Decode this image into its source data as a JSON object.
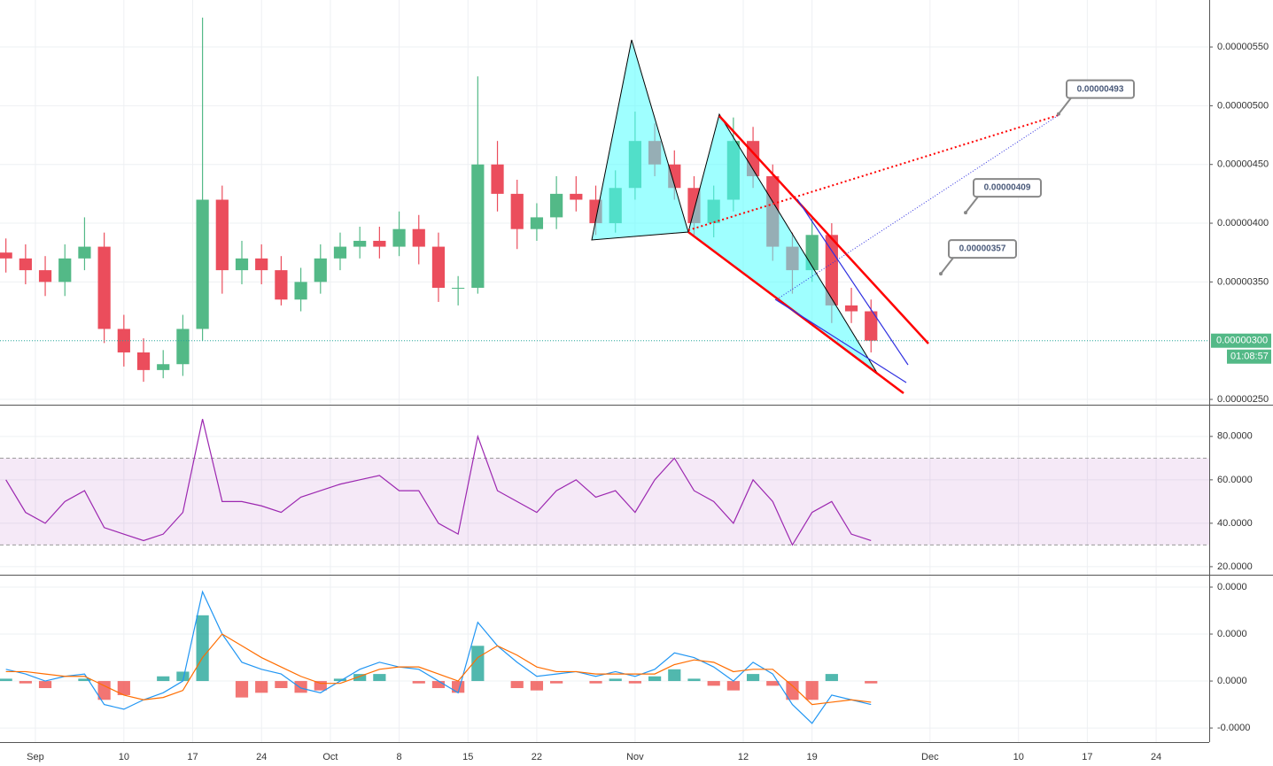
{
  "chart_data": [
    {
      "type": "candlestick",
      "x": [
        -3,
        -1,
        1,
        3,
        5,
        7,
        9,
        11,
        13,
        15,
        17,
        19,
        21,
        23,
        25,
        27,
        29,
        31,
        33,
        35,
        37,
        39,
        41,
        43,
        45,
        47,
        49,
        51,
        53,
        55,
        57,
        59,
        61,
        63,
        65,
        67,
        69,
        71,
        73,
        75,
        77,
        79,
        81,
        83,
        85
      ],
      "open": [
        3.75e-06,
        3.7e-06,
        3.6e-06,
        3.5e-06,
        3.7e-06,
        3.8e-06,
        3.1e-06,
        2.9e-06,
        2.75e-06,
        2.8e-06,
        3.1e-06,
        4.2e-06,
        3.6e-06,
        3.7e-06,
        3.6e-06,
        3.35e-06,
        3.5e-06,
        3.7e-06,
        3.8e-06,
        3.85e-06,
        3.8e-06,
        3.95e-06,
        3.8e-06,
        3.45e-06,
        3.45e-06,
        4.5e-06,
        4.25e-06,
        3.95e-06,
        4.05e-06,
        4.25e-06,
        4.2e-06,
        4e-06,
        4.3e-06,
        4.7e-06,
        4.5e-06,
        4.3e-06,
        4e-06,
        4.2e-06,
        4.7e-06,
        4.4e-06,
        3.8e-06,
        3.6e-06,
        3.9e-06,
        3.3e-06,
        3.25e-06
      ],
      "high": [
        3.87e-06,
        3.82e-06,
        3.72e-06,
        3.82e-06,
        4.05e-06,
        3.92e-06,
        3.22e-06,
        3.02e-06,
        2.92e-06,
        3.22e-06,
        5.75e-06,
        4.32e-06,
        3.85e-06,
        3.82e-06,
        3.72e-06,
        3.62e-06,
        3.82e-06,
        3.92e-06,
        3.97e-06,
        3.97e-06,
        4.1e-06,
        4.07e-06,
        3.92e-06,
        3.55e-06,
        5.25e-06,
        4.7e-06,
        4.37e-06,
        4.17e-06,
        4.4e-06,
        4.4e-06,
        4.32e-06,
        4.45e-06,
        4.95e-06,
        4.85e-06,
        4.62e-06,
        4.4e-06,
        4.32e-06,
        4.9e-06,
        4.82e-06,
        4.5e-06,
        3.92e-06,
        4.05e-06,
        4e-06,
        3.45e-06,
        3.35e-06
      ],
      "low": [
        3.58e-06,
        3.48e-06,
        3.38e-06,
        3.38e-06,
        3.6e-06,
        2.98e-06,
        2.78e-06,
        2.65e-06,
        2.68e-06,
        2.7e-06,
        3e-06,
        3.4e-06,
        3.48e-06,
        3.48e-06,
        3.3e-06,
        3.25e-06,
        3.4e-06,
        3.6e-06,
        3.7e-06,
        3.7e-06,
        3.72e-06,
        3.65e-06,
        3.33e-06,
        3.3e-06,
        3.4e-06,
        4.1e-06,
        3.78e-06,
        3.85e-06,
        3.95e-06,
        4.1e-06,
        3.9e-06,
        3.92e-06,
        4.2e-06,
        4.4e-06,
        4.2e-06,
        3.9e-06,
        3.88e-06,
        4.1e-06,
        4.3e-06,
        3.68e-06,
        3.4e-06,
        3.5e-06,
        3.15e-06,
        3.15e-06,
        2.9e-06
      ],
      "close": [
        3.7e-06,
        3.6e-06,
        3.5e-06,
        3.7e-06,
        3.8e-06,
        3.1e-06,
        2.9e-06,
        2.75e-06,
        2.8e-06,
        3.1e-06,
        4.2e-06,
        3.6e-06,
        3.7e-06,
        3.6e-06,
        3.35e-06,
        3.5e-06,
        3.7e-06,
        3.8e-06,
        3.85e-06,
        3.8e-06,
        3.95e-06,
        3.8e-06,
        3.45e-06,
        3.45e-06,
        4.5e-06,
        4.25e-06,
        3.95e-06,
        4.05e-06,
        4.25e-06,
        4.2e-06,
        4e-06,
        4.3e-06,
        4.7e-06,
        4.5e-06,
        4.3e-06,
        4e-06,
        4.2e-06,
        4.7e-06,
        4.4e-06,
        3.8e-06,
        3.6e-06,
        3.9e-06,
        3.3e-06,
        3.25e-06,
        3e-06
      ],
      "up_color": "#53b987",
      "down_color": "#eb4d5c",
      "xlim": [
        -3.6,
        119.4
      ],
      "xticks": [
        {
          "value": 0,
          "label": "Sep"
        },
        {
          "value": 9,
          "label": "10"
        },
        {
          "value": 16,
          "label": "17"
        },
        {
          "value": 23,
          "label": "24"
        },
        {
          "value": 30,
          "label": "Oct"
        },
        {
          "value": 37,
          "label": "8"
        },
        {
          "value": 44,
          "label": "15"
        },
        {
          "value": 51,
          "label": "22"
        },
        {
          "value": 61,
          "label": "Nov"
        },
        {
          "value": 72,
          "label": "12"
        },
        {
          "value": 79,
          "label": "19"
        },
        {
          "value": 91,
          "label": "Dec"
        },
        {
          "value": 100,
          "label": "10"
        },
        {
          "value": 107,
          "label": "17"
        },
        {
          "value": 114,
          "label": "24"
        }
      ],
      "ylim": [
        2.455e-06,
        5.9e-06
      ],
      "yticks": [
        {
          "value": 5.5e-06,
          "label": "0.00000550"
        },
        {
          "value": 5e-06,
          "label": "0.00000500"
        },
        {
          "value": 4.5e-06,
          "label": "0.00000450"
        },
        {
          "value": 4e-06,
          "label": "0.00000400"
        },
        {
          "value": 3.5e-06,
          "label": "0.00000350"
        },
        {
          "value": 2.5e-06,
          "label": "0.00000250"
        }
      ],
      "grid": true,
      "last_price": {
        "value": 3e-06,
        "label": "0.00000300"
      },
      "countdown": "01:08:57",
      "annotations": [
        {
          "value": 4.93e-06,
          "label": "0.00000493"
        },
        {
          "value": 4.09e-06,
          "label": "0.00000409"
        },
        {
          "value": 3.57e-06,
          "label": "0.00000357"
        }
      ]
    },
    {
      "type": "line",
      "values": [
        60,
        45,
        40,
        50,
        55,
        38,
        35,
        32,
        35,
        45,
        88,
        50,
        50,
        48,
        45,
        52,
        55,
        58,
        60,
        62,
        55,
        55,
        40,
        35,
        80,
        55,
        50,
        45,
        55,
        60,
        52,
        55,
        45,
        60,
        70,
        55,
        50,
        40,
        60,
        50,
        30,
        45,
        50,
        35,
        32
      ],
      "color": "#9c27b0",
      "band": [
        30,
        70
      ],
      "ylim": [
        16.7,
        94.2
      ],
      "yticks": [
        {
          "value": 80,
          "label": "80.0000"
        },
        {
          "value": 60,
          "label": "60.0000"
        },
        {
          "value": 40,
          "label": "40.0000"
        },
        {
          "value": 20,
          "label": "20.0000"
        }
      ]
    },
    {
      "type": "macd",
      "series": [
        {
          "color": "#2196f3",
          "values": [
            5e-09,
            3e-09,
            0,
            2e-09,
            3e-09,
            -1e-08,
            -1.2e-08,
            -8e-09,
            -5e-09,
            0,
            3.8e-08,
            2e-08,
            8e-09,
            5e-09,
            3e-09,
            -3e-09,
            -5e-09,
            0,
            5e-09,
            8e-09,
            6e-09,
            5e-09,
            0,
            -5e-09,
            2.5e-08,
            1.5e-08,
            8e-09,
            2e-09,
            3e-09,
            4e-09,
            2e-09,
            4e-09,
            2e-09,
            5e-09,
            1.2e-08,
            1e-08,
            6e-09,
            0,
            8e-09,
            3e-09,
            -1e-08,
            -1.8e-08,
            -6e-09,
            -8e-09,
            -1e-08
          ]
        },
        {
          "color": "#ff6d00",
          "values": [
            4e-09,
            4e-09,
            3e-09,
            2e-09,
            2e-09,
            -2e-09,
            -6e-09,
            -8e-09,
            -7e-09,
            -4e-09,
            1e-08,
            2e-08,
            1.5e-08,
            1e-08,
            6e-09,
            2e-09,
            -1e-09,
            -1e-09,
            2e-09,
            5e-09,
            6e-09,
            6e-09,
            3e-09,
            0,
            1e-08,
            1.5e-08,
            1.1e-08,
            6e-09,
            4e-09,
            4e-09,
            3e-09,
            3e-09,
            3e-09,
            3e-09,
            7e-09,
            9e-09,
            8e-09,
            4e-09,
            5e-09,
            5e-09,
            -2e-09,
            -1e-08,
            -9e-09,
            -8e-09,
            -9e-09
          ]
        }
      ],
      "histogram": {
        "values": [
          1e-09,
          -1e-09,
          -3e-09,
          0,
          1e-09,
          -8e-09,
          -6e-09,
          0,
          2e-09,
          4e-09,
          2.8e-08,
          0,
          -7e-09,
          -5e-09,
          -3e-09,
          -5e-09,
          -4e-09,
          1e-09,
          3e-09,
          3e-09,
          0,
          -1e-09,
          -3e-09,
          -5e-09,
          1.5e-08,
          0,
          -3e-09,
          -4e-09,
          -1e-09,
          0,
          -1e-09,
          1e-09,
          -1e-09,
          2e-09,
          5e-09,
          1e-09,
          -2e-09,
          -4e-09,
          3e-09,
          -2e-09,
          -8e-09,
          -8e-09,
          3e-09,
          0,
          -1e-09
        ],
        "up_color": "#26a69a",
        "down_color": "#ef5350"
      },
      "ylim": [
        -2.6e-08,
        4.49e-08
      ],
      "yticks": [
        {
          "value": 4e-08,
          "label": "0.0000"
        },
        {
          "value": 2e-08,
          "label": "0.0000"
        },
        {
          "value": 0,
          "label": "0.0000"
        },
        {
          "value": -2e-08,
          "label": "-0.0000"
        }
      ]
    }
  ]
}
